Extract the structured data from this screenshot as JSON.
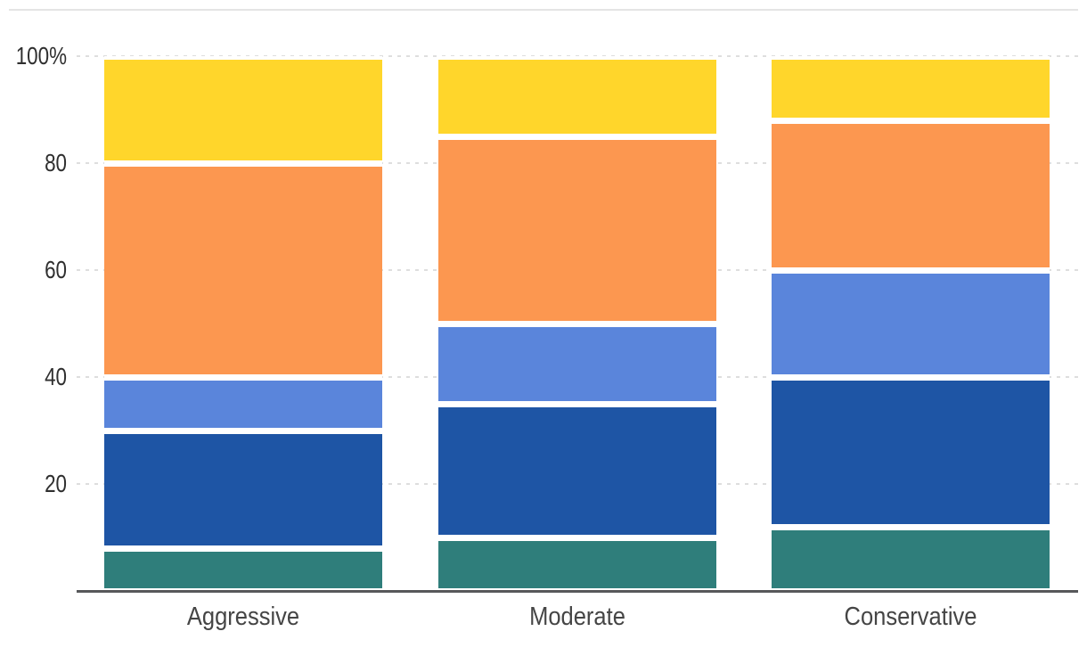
{
  "chart_data": {
    "type": "bar",
    "stacked": true,
    "title": "",
    "xlabel": "",
    "ylabel": "",
    "categories": [
      "Aggressive",
      "Moderate",
      "Conservative"
    ],
    "series": [
      {
        "name": "segment-teal",
        "color": "#2F7E7B",
        "values": [
          8,
          10,
          12
        ]
      },
      {
        "name": "segment-navy",
        "color": "#1E55A5",
        "values": [
          22,
          25,
          28
        ]
      },
      {
        "name": "segment-blue",
        "color": "#5A85DB",
        "values": [
          10,
          15,
          20
        ]
      },
      {
        "name": "segment-orange",
        "color": "#FC9750",
        "values": [
          40,
          35,
          28
        ]
      },
      {
        "name": "segment-yellow",
        "color": "#FFD62B",
        "values": [
          20,
          15,
          12
        ]
      }
    ],
    "yticks": [
      {
        "label": "100%",
        "value": 100
      },
      {
        "label": "80",
        "value": 80
      },
      {
        "label": "60",
        "value": 60
      },
      {
        "label": "40",
        "value": 40
      },
      {
        "label": "20",
        "value": 20
      }
    ],
    "ylim": [
      0,
      100
    ],
    "grid": "horizontal-dashed",
    "legend": "none",
    "colors": {
      "gridline": "#dedede",
      "axis_line": "#57585a",
      "y_label_text": "#2f2f2f",
      "x_label_text": "#454545",
      "top_rule": "#e4e4e4",
      "background": "#ffffff"
    }
  }
}
